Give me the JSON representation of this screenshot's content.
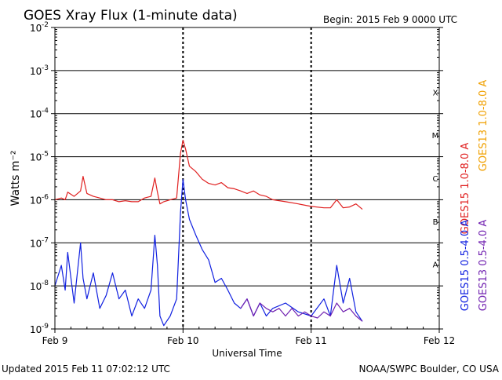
{
  "title": "GOES Xray Flux (1-minute data)",
  "begin": "Begin:  2015 Feb 9 0000 UTC",
  "footer_left": "Updated 2015 Feb 11 07:02:12 UTC",
  "footer_right": "NOAA/SWPC Boulder, CO USA",
  "colors": {
    "goes15_long": "#e02020",
    "goes13_long": "#f0a000",
    "goes15_short": "#1020e0",
    "goes13_short": "#7020b0",
    "axis": "#000000"
  },
  "chart_data": {
    "type": "line",
    "title": "GOES Xray Flux (1-minute data)",
    "xlabel": "Universal Time",
    "ylabel": "Watts m⁻²",
    "yscale": "log",
    "ylim": [
      1e-09,
      0.01
    ],
    "xlim": [
      0,
      3
    ],
    "x_units": "days since 2015 Feb 9 0000 UTC",
    "x_ticks": [
      {
        "value": 0,
        "label": "Feb 9"
      },
      {
        "value": 1,
        "label": "Feb 10"
      },
      {
        "value": 2,
        "label": "Feb 11"
      },
      {
        "value": 3,
        "label": "Feb 12"
      }
    ],
    "y_ticks": [
      {
        "exp": -9,
        "label": "10",
        "sup": "-9"
      },
      {
        "exp": -8,
        "label": "10",
        "sup": "-8"
      },
      {
        "exp": -7,
        "label": "10",
        "sup": "-7"
      },
      {
        "exp": -6,
        "label": "10",
        "sup": "-6"
      },
      {
        "exp": -5,
        "label": "10",
        "sup": "-5"
      },
      {
        "exp": -4,
        "label": "10",
        "sup": "-4"
      },
      {
        "exp": -3,
        "label": "10",
        "sup": "-3"
      },
      {
        "exp": -2,
        "label": "10",
        "sup": "-2"
      }
    ],
    "flare_classes": [
      {
        "label": "A",
        "exp": -8
      },
      {
        "label": "B",
        "exp": -7
      },
      {
        "label": "C",
        "exp": -6
      },
      {
        "label": "M",
        "exp": -5
      },
      {
        "label": "X",
        "exp": -4
      }
    ],
    "grid": true,
    "legend_position": "right",
    "series": [
      {
        "name": "GOES15 1.0-8.0 A",
        "color": "#e02020",
        "x": [
          0.0,
          0.05,
          0.08,
          0.1,
          0.15,
          0.2,
          0.22,
          0.25,
          0.3,
          0.35,
          0.4,
          0.45,
          0.5,
          0.55,
          0.6,
          0.65,
          0.7,
          0.75,
          0.78,
          0.8,
          0.82,
          0.85,
          0.9,
          0.95,
          0.98,
          1.0,
          1.02,
          1.05,
          1.1,
          1.15,
          1.2,
          1.25,
          1.3,
          1.35,
          1.4,
          1.45,
          1.5,
          1.55,
          1.6,
          1.65,
          1.7,
          1.8,
          1.9,
          2.0,
          2.1,
          2.15,
          2.2,
          2.25,
          2.3,
          2.35,
          2.4
        ],
        "y": [
          1e-06,
          1.1e-06,
          1e-06,
          1.5e-06,
          1.2e-06,
          1.6e-06,
          3.5e-06,
          1.4e-06,
          1.2e-06,
          1.1e-06,
          1e-06,
          1e-06,
          9e-07,
          9.5e-07,
          9e-07,
          9e-07,
          1.1e-06,
          1.2e-06,
          3.2e-06,
          1.5e-06,
          8e-07,
          9e-07,
          1e-06,
          1.1e-06,
          1.2e-05,
          2.4e-05,
          1.5e-05,
          6e-06,
          4.5e-06,
          3e-06,
          2.4e-06,
          2.2e-06,
          2.5e-06,
          1.9e-06,
          1.8e-06,
          1.6e-06,
          1.4e-06,
          1.6e-06,
          1.3e-06,
          1.2e-06,
          1e-06,
          9e-07,
          8e-07,
          7e-07,
          6.5e-07,
          6.5e-07,
          1e-06,
          6.5e-07,
          6.8e-07,
          8e-07,
          6e-07
        ]
      },
      {
        "name": "GOES13 1.0-8.0 A",
        "color": "#f0a000",
        "x": [],
        "y": []
      },
      {
        "name": "GOES15 0.5-4.0 A",
        "color": "#1020e0",
        "x": [
          0.0,
          0.05,
          0.08,
          0.1,
          0.15,
          0.2,
          0.22,
          0.25,
          0.3,
          0.35,
          0.4,
          0.45,
          0.5,
          0.55,
          0.6,
          0.65,
          0.7,
          0.75,
          0.78,
          0.8,
          0.82,
          0.85,
          0.9,
          0.95,
          0.98,
          1.0,
          1.02,
          1.05,
          1.1,
          1.15,
          1.2,
          1.25,
          1.3,
          1.35,
          1.4,
          1.45,
          1.5,
          1.55,
          1.6,
          1.65,
          1.7,
          1.8,
          1.9,
          2.0,
          2.1,
          2.15,
          2.2,
          2.25,
          2.3,
          2.35,
          2.4
        ],
        "y": [
          1e-08,
          3e-08,
          8e-09,
          6e-08,
          4e-09,
          1e-07,
          1.5e-08,
          5e-09,
          2e-08,
          3e-09,
          6e-09,
          2e-08,
          5e-09,
          8e-09,
          2e-09,
          5e-09,
          3e-09,
          8e-09,
          1.5e-07,
          3e-08,
          2e-09,
          1.2e-09,
          2e-09,
          5e-09,
          5e-07,
          3e-06,
          1e-06,
          3.5e-07,
          1.5e-07,
          7e-08,
          4e-08,
          1.2e-08,
          1.5e-08,
          8e-09,
          4e-09,
          3e-09,
          5e-09,
          2e-09,
          4e-09,
          2e-09,
          3e-09,
          4e-09,
          2.5e-09,
          2e-09,
          5e-09,
          2e-09,
          3e-08,
          4e-09,
          1.5e-08,
          2.5e-09,
          1.5e-09
        ]
      },
      {
        "name": "GOES13 0.5-4.0 A",
        "color": "#7020b0",
        "x": [
          1.45,
          1.5,
          1.55,
          1.6,
          1.65,
          1.7,
          1.75,
          1.8,
          1.85,
          1.9,
          1.95,
          2.0,
          2.05,
          2.1,
          2.15,
          2.2,
          2.25,
          2.3,
          2.35,
          2.4
        ],
        "y": [
          3e-09,
          5e-09,
          2e-09,
          4e-09,
          3e-09,
          2.5e-09,
          3e-09,
          2e-09,
          3e-09,
          2e-09,
          2.5e-09,
          2e-09,
          1.8e-09,
          2.5e-09,
          2e-09,
          4e-09,
          2.5e-09,
          3e-09,
          2e-09,
          1.5e-09
        ]
      }
    ]
  }
}
